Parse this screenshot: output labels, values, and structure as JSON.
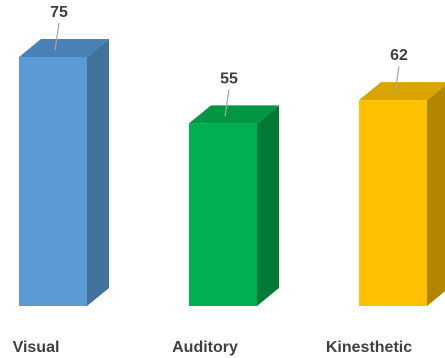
{
  "chart_data": {
    "type": "bar",
    "style": "3d-column",
    "categories": [
      "Visual",
      "Auditory",
      "Kinesthetic"
    ],
    "values": [
      75,
      55,
      62
    ],
    "value_labels": [
      "75",
      "55",
      "62"
    ],
    "title": "",
    "xlabel": "",
    "ylabel": "",
    "ylim": [
      0,
      85
    ],
    "grid": false,
    "legend": "none",
    "colors": [
      {
        "front": "#5b9bd5",
        "side": "#41719c",
        "top": "#4a82b8"
      },
      {
        "front": "#00b050",
        "side": "#007a36",
        "top": "#009643"
      },
      {
        "front": "#ffc000",
        "side": "#b38600",
        "top": "#d9a400"
      }
    ],
    "label_color": "#404040",
    "leader_color": "#a6a6a6"
  }
}
